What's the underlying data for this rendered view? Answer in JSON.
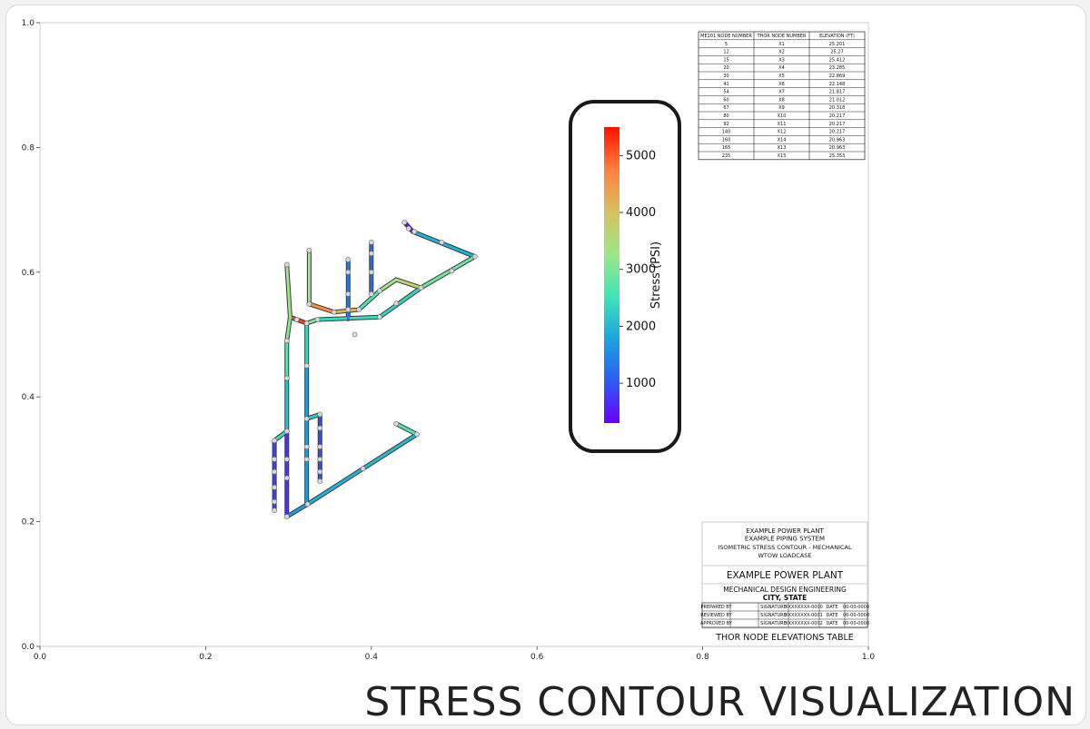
{
  "caption": "STRESS CONTOUR VISUALIZATION",
  "plot": {
    "x_ticks": [
      "0.0",
      "0.2",
      "0.4",
      "0.6",
      "0.8",
      "1.0"
    ],
    "y_ticks": [
      "0.0",
      "0.2",
      "0.4",
      "0.6",
      "0.8",
      "1.0"
    ]
  },
  "colorbar": {
    "label": "Stress (PSI)",
    "min": 300,
    "max": 5500,
    "ticks": [
      "1000",
      "2000",
      "3000",
      "4000",
      "5000"
    ],
    "tick_values": [
      1000,
      2000,
      3000,
      4000,
      5000
    ]
  },
  "node_table": {
    "headers": [
      "ME101 NODE NUMBER",
      "THOR NODE NUMBER",
      "ELEVATION (FT)"
    ],
    "rows": [
      [
        "5",
        "X1",
        "25.201"
      ],
      [
        "12",
        "X2",
        "25.27"
      ],
      [
        "15",
        "X3",
        "25.412"
      ],
      [
        "20",
        "X4",
        "23.285"
      ],
      [
        "30",
        "X5",
        "22.869"
      ],
      [
        "41",
        "X6",
        "22.148"
      ],
      [
        "54",
        "X7",
        "21.817"
      ],
      [
        "60",
        "X8",
        "21.012"
      ],
      [
        "67",
        "X9",
        "20.318"
      ],
      [
        "80",
        "X10",
        "20.217"
      ],
      [
        "92",
        "X11",
        "20.217"
      ],
      [
        "140",
        "X12",
        "20.217"
      ],
      [
        "160",
        "X14",
        "20.963"
      ],
      [
        "165",
        "X13",
        "20.963"
      ],
      [
        "235",
        "X15",
        "25.353"
      ]
    ]
  },
  "title_block": {
    "line1": "EXAMPLE POWER PLANT",
    "line2": "EXAMPLE PIPING SYSTEM",
    "line3": "ISOMETRIC STRESS CONTOUR - MECHANICAL",
    "line4": "WTOW LOADCASE",
    "company": "EXAMPLE POWER PLANT",
    "dept": "MECHANICAL DESIGN ENGINEERING",
    "location": "CITY, STATE",
    "sign_rows": [
      [
        "PREPARED BY",
        "SIGNATURE",
        "XXXXXXXX-0000",
        "DATE",
        "00-00-0000"
      ],
      [
        "REVIEWED BY",
        "SIGNATURE",
        "XXXXXXXX-0001",
        "DATE",
        "00-00-0000"
      ],
      [
        "APPROVED BY",
        "SIGNATURE",
        "XXXXXXXX-0002",
        "DATE",
        "00-00-0000"
      ]
    ],
    "footer": "THOR NODE ELEVATIONS TABLE"
  },
  "colors": {
    "colormap": [
      "#6a00ff",
      "#2c5cf2",
      "#1aa6de",
      "#3fe6b6",
      "#9ee687",
      "#d8c060",
      "#ff8040",
      "#ff1000"
    ],
    "pipe_outline": "#3a3a3a",
    "node_marker": "#d9d9d9",
    "frame_border": "#d8d8d8"
  },
  "piping": {
    "segments": [
      {
        "from": [
          0.44,
          0.68
        ],
        "to": [
          0.45,
          0.665
        ],
        "stress": 400
      },
      {
        "from": [
          0.45,
          0.665
        ],
        "to": [
          0.525,
          0.625
        ],
        "stress": 1900
      },
      {
        "from": [
          0.525,
          0.625
        ],
        "to": [
          0.46,
          0.575
        ],
        "stress": 2900
      },
      {
        "from": [
          0.46,
          0.575
        ],
        "to": [
          0.43,
          0.588
        ],
        "stress": 3700
      },
      {
        "from": [
          0.43,
          0.588
        ],
        "to": [
          0.41,
          0.57
        ],
        "stress": 3300
      },
      {
        "from": [
          0.41,
          0.57
        ],
        "to": [
          0.385,
          0.54
        ],
        "stress": 2600
      },
      {
        "from": [
          0.385,
          0.54
        ],
        "to": [
          0.355,
          0.536
        ],
        "stress": 4200
      },
      {
        "from": [
          0.355,
          0.536
        ],
        "to": [
          0.325,
          0.549
        ],
        "stress": 4600
      },
      {
        "from": [
          0.325,
          0.549
        ],
        "to": [
          0.325,
          0.635
        ],
        "stress": 3200
      },
      {
        "from": [
          0.46,
          0.575
        ],
        "to": [
          0.41,
          0.528
        ],
        "stress": 2300
      },
      {
        "from": [
          0.41,
          0.528
        ],
        "to": [
          0.335,
          0.524
        ],
        "stress": 2400
      },
      {
        "from": [
          0.335,
          0.524
        ],
        "to": [
          0.322,
          0.518
        ],
        "stress": 3100
      },
      {
        "from": [
          0.322,
          0.518
        ],
        "to": [
          0.302,
          0.528
        ],
        "stress": 5200
      },
      {
        "from": [
          0.302,
          0.528
        ],
        "to": [
          0.298,
          0.612
        ],
        "stress": 3300
      },
      {
        "from": [
          0.302,
          0.528
        ],
        "to": [
          0.298,
          0.49
        ],
        "stress": 3100
      },
      {
        "from": [
          0.298,
          0.49
        ],
        "to": [
          0.298,
          0.43
        ],
        "stress": 2700
      },
      {
        "from": [
          0.298,
          0.43
        ],
        "to": [
          0.298,
          0.345
        ],
        "stress": 2100
      },
      {
        "from": [
          0.298,
          0.345
        ],
        "to": [
          0.283,
          0.33
        ],
        "stress": 2400
      },
      {
        "from": [
          0.283,
          0.33
        ],
        "to": [
          0.283,
          0.218
        ],
        "stress": 800
      },
      {
        "from": [
          0.298,
          0.345
        ],
        "to": [
          0.298,
          0.208
        ],
        "stress": 700
      },
      {
        "from": [
          0.298,
          0.208
        ],
        "to": [
          0.323,
          0.228
        ],
        "stress": 1700
      },
      {
        "from": [
          0.322,
          0.518
        ],
        "to": [
          0.322,
          0.45
        ],
        "stress": 2400
      },
      {
        "from": [
          0.322,
          0.45
        ],
        "to": [
          0.322,
          0.228
        ],
        "stress": 1700
      },
      {
        "from": [
          0.323,
          0.228
        ],
        "to": [
          0.39,
          0.285
        ],
        "stress": 1900
      },
      {
        "from": [
          0.39,
          0.285
        ],
        "to": [
          0.455,
          0.34
        ],
        "stress": 2000
      },
      {
        "from": [
          0.455,
          0.34
        ],
        "to": [
          0.43,
          0.357
        ],
        "stress": 2700
      },
      {
        "from": [
          0.322,
          0.365
        ],
        "to": [
          0.338,
          0.372
        ],
        "stress": 2200
      },
      {
        "from": [
          0.338,
          0.372
        ],
        "to": [
          0.338,
          0.265
        ],
        "stress": 900
      },
      {
        "from": [
          0.372,
          0.62
        ],
        "to": [
          0.372,
          0.525
        ],
        "stress": 1300
      },
      {
        "from": [
          0.4,
          0.648
        ],
        "to": [
          0.4,
          0.565
        ],
        "stress": 1200
      }
    ],
    "nodes": [
      [
        0.44,
        0.68
      ],
      [
        0.445,
        0.67
      ],
      [
        0.452,
        0.665
      ],
      [
        0.485,
        0.648
      ],
      [
        0.525,
        0.625
      ],
      [
        0.497,
        0.602
      ],
      [
        0.46,
        0.575
      ],
      [
        0.41,
        0.57
      ],
      [
        0.385,
        0.54
      ],
      [
        0.355,
        0.536
      ],
      [
        0.325,
        0.549
      ],
      [
        0.325,
        0.635
      ],
      [
        0.41,
        0.528
      ],
      [
        0.335,
        0.524
      ],
      [
        0.322,
        0.518
      ],
      [
        0.31,
        0.524
      ],
      [
        0.298,
        0.612
      ],
      [
        0.298,
        0.49
      ],
      [
        0.298,
        0.43
      ],
      [
        0.298,
        0.345
      ],
      [
        0.283,
        0.33
      ],
      [
        0.283,
        0.3
      ],
      [
        0.283,
        0.28
      ],
      [
        0.283,
        0.255
      ],
      [
        0.283,
        0.232
      ],
      [
        0.283,
        0.218
      ],
      [
        0.298,
        0.3
      ],
      [
        0.298,
        0.27
      ],
      [
        0.298,
        0.208
      ],
      [
        0.323,
        0.228
      ],
      [
        0.322,
        0.45
      ],
      [
        0.322,
        0.365
      ],
      [
        0.322,
        0.32
      ],
      [
        0.322,
        0.3
      ],
      [
        0.338,
        0.372
      ],
      [
        0.338,
        0.35
      ],
      [
        0.338,
        0.32
      ],
      [
        0.338,
        0.3
      ],
      [
        0.338,
        0.28
      ],
      [
        0.338,
        0.265
      ],
      [
        0.39,
        0.285
      ],
      [
        0.455,
        0.34
      ],
      [
        0.43,
        0.357
      ],
      [
        0.372,
        0.62
      ],
      [
        0.372,
        0.6
      ],
      [
        0.372,
        0.565
      ],
      [
        0.372,
        0.54
      ],
      [
        0.4,
        0.648
      ],
      [
        0.4,
        0.63
      ],
      [
        0.4,
        0.6
      ],
      [
        0.4,
        0.565
      ],
      [
        0.43,
        0.55
      ],
      [
        0.38,
        0.5
      ]
    ]
  }
}
